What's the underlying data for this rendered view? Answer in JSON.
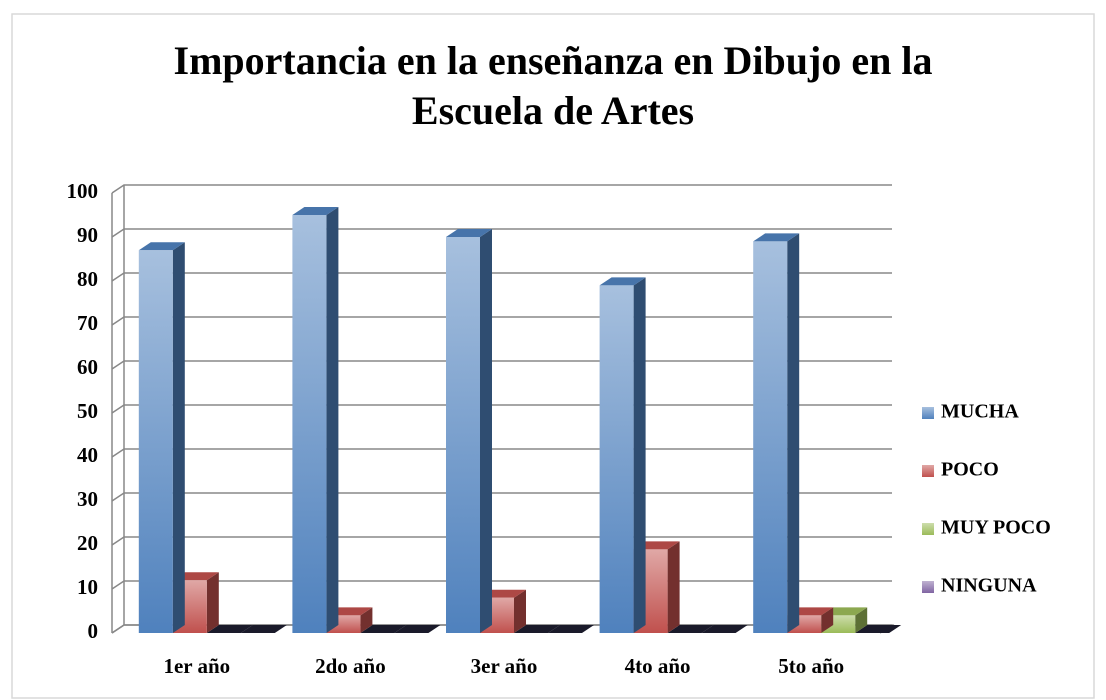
{
  "chart_data": {
    "type": "bar3d",
    "title": "Importancia en la enseñanza en Dibujo en la Escuela de Artes",
    "categories": [
      "1er año",
      "2do año",
      "3er año",
      "4to año",
      "5to año"
    ],
    "series": [
      {
        "name": "MUCHA",
        "color": "#4f81bd",
        "values": [
          87,
          95,
          90,
          79,
          89
        ]
      },
      {
        "name": "POCO",
        "color": "#c0504d",
        "values": [
          12,
          4,
          8,
          19,
          4
        ]
      },
      {
        "name": "MUY POCO",
        "color": "#9bbb59",
        "values": [
          0,
          0,
          0,
          0,
          4
        ]
      },
      {
        "name": "NINGUNA",
        "color": "#8064a2",
        "values": [
          0,
          0,
          0,
          0,
          0
        ]
      }
    ],
    "ylim": [
      0,
      100
    ],
    "yticks": [
      0,
      10,
      20,
      30,
      40,
      50,
      60,
      70,
      80,
      90,
      100
    ],
    "grid": true,
    "legend": "right"
  }
}
